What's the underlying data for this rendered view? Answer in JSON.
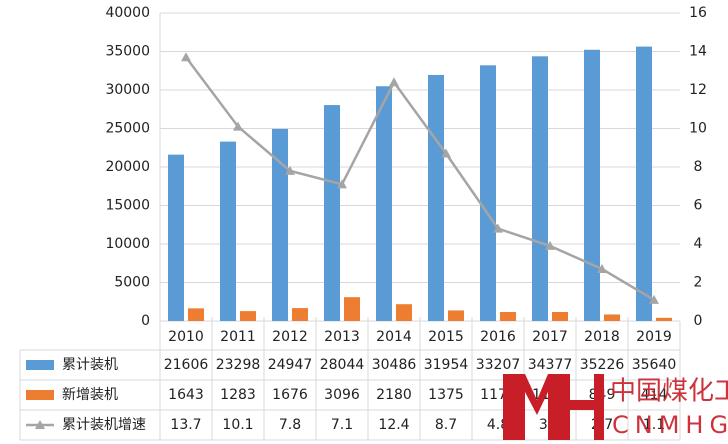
{
  "chart_data": {
    "type": "bar",
    "categories": [
      "2010",
      "2011",
      "2012",
      "2013",
      "2014",
      "2015",
      "2016",
      "2017",
      "2018",
      "2019"
    ],
    "series": [
      {
        "name": "累计装机",
        "type": "bar",
        "color": "#5b9bd5",
        "values": [
          21606,
          23298,
          24947,
          28044,
          30486,
          31954,
          33207,
          34377,
          35226,
          35640
        ]
      },
      {
        "name": "新增装机",
        "type": "bar",
        "color": "#ed7d31",
        "values": [
          1643,
          1283,
          1676,
          3096,
          2180,
          1375,
          1170,
          1170,
          849,
          414
        ]
      },
      {
        "name": "累计装机增速",
        "type": "line",
        "axis": "y2",
        "color": "#a5a5a5",
        "values": [
          13.7,
          10.1,
          7.8,
          7.1,
          12.4,
          8.7,
          4.8,
          3.9,
          2.7,
          1.1
        ]
      }
    ],
    "ylim": [
      0,
      40000
    ],
    "yticks": [
      0,
      5000,
      10000,
      15000,
      20000,
      25000,
      30000,
      35000,
      40000
    ],
    "y2lim": [
      0,
      16
    ],
    "y2ticks": [
      0,
      2,
      4,
      6,
      8,
      10,
      12,
      14,
      16
    ],
    "grid": true,
    "data_table": true
  },
  "watermark": {
    "text": "中国煤化工",
    "subtext": "CNMHG"
  }
}
